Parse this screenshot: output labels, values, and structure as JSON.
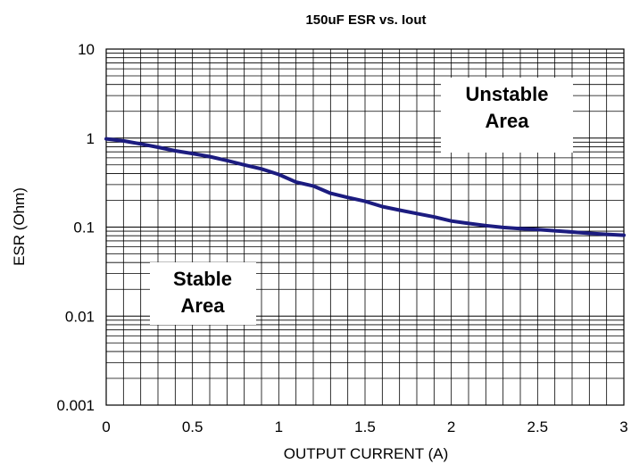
{
  "chart_data": {
    "type": "line",
    "title": "150uF ESR vs. Iout",
    "xlabel": "OUTPUT CURRENT (A)",
    "ylabel": "ESR (Ohm)",
    "xlim": [
      0,
      3
    ],
    "ylim": [
      0.001,
      10
    ],
    "yscale": "log",
    "grid": true,
    "x_ticks": [
      "0",
      "0.5",
      "1",
      "1.5",
      "2",
      "2.5",
      "3"
    ],
    "y_ticks": [
      "0.001",
      "0.01",
      "0.1",
      "1",
      "10"
    ],
    "line_color": "#1c1c80",
    "series": [
      {
        "x": [
          0,
          0.1,
          0.2,
          0.3,
          0.4,
          0.5,
          0.6,
          0.7,
          0.8,
          0.9,
          1.0,
          1.1,
          1.2,
          1.3,
          1.4,
          1.5,
          1.6,
          1.7,
          1.8,
          1.9,
          2.0,
          2.1,
          2.2,
          2.3,
          2.4,
          2.5,
          2.6,
          2.7,
          2.8,
          2.9,
          3.0
        ],
        "y": [
          0.98,
          0.93,
          0.86,
          0.79,
          0.72,
          0.67,
          0.62,
          0.56,
          0.5,
          0.45,
          0.39,
          0.32,
          0.29,
          0.24,
          0.215,
          0.195,
          0.17,
          0.155,
          0.142,
          0.13,
          0.117,
          0.11,
          0.104,
          0.099,
          0.096,
          0.094,
          0.091,
          0.088,
          0.085,
          0.083,
          0.081
        ]
      }
    ],
    "annotations": [
      {
        "id": "unstable",
        "lines": [
          "Unstable",
          "Area"
        ]
      },
      {
        "id": "stable",
        "lines": [
          "Stable",
          "Area"
        ]
      }
    ]
  }
}
